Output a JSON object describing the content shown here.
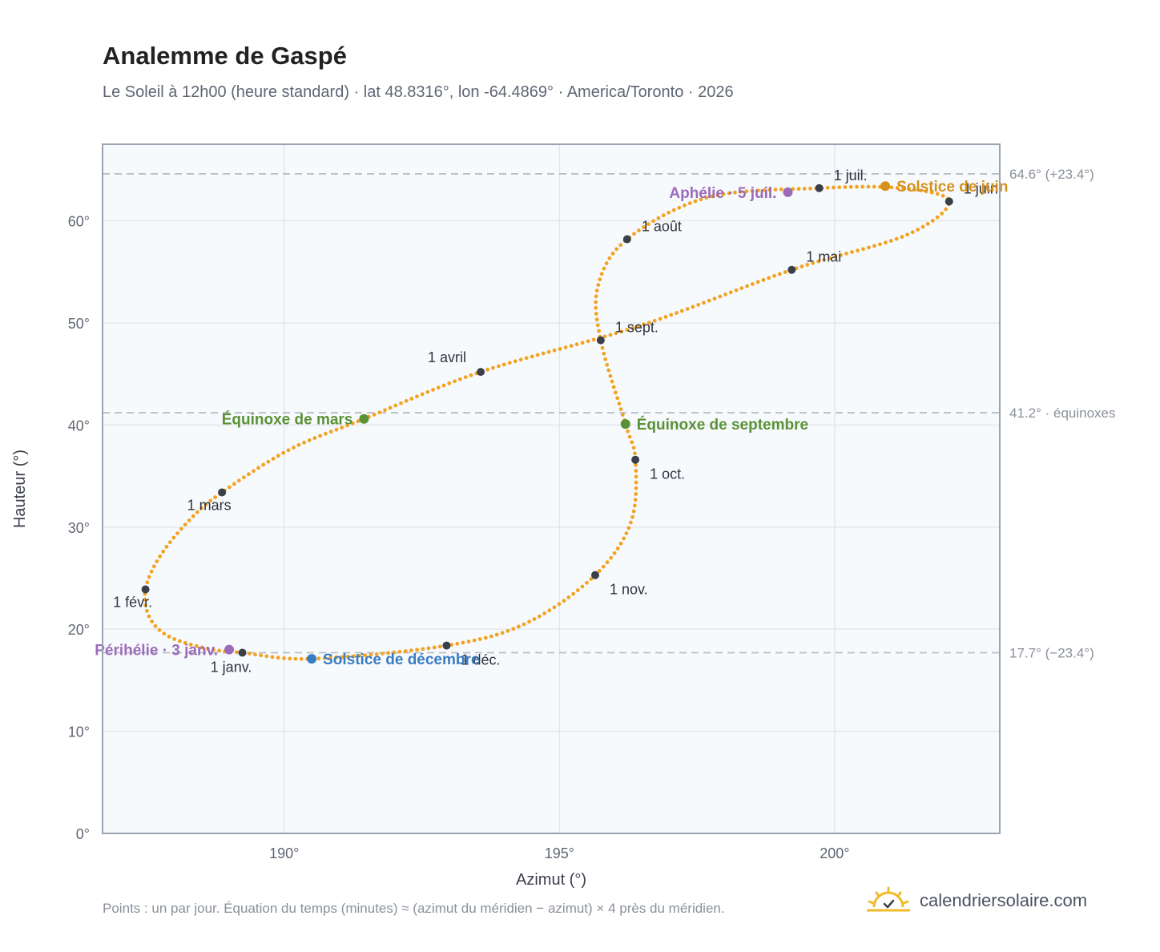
{
  "title": "Analemme de Gaspé",
  "subtitle": "Le Soleil à 12h00 (heure standard) · lat 48.8316°, lon -64.4869° · America/Toronto · 2026",
  "footnote": "Points : un par jour. Équation du temps (minutes) ≈ (azimut du méridien − azimut) × 4 près du méridien.",
  "brand": {
    "text": "calendriersolaire.com",
    "icon": "sun-check-logo-icon"
  },
  "colors": {
    "curve": "#f2a324",
    "month_dot": "#3a3f4a",
    "solstice_june": "#d4911c",
    "solstice_december": "#3a7cc2",
    "equinox": "#5a9135",
    "apsis": "#9b6bb7",
    "grid": "#e3e7ec",
    "plot_bg": "#f7fafd",
    "frame": "#9aa3b1",
    "refline": "#b9bec7"
  },
  "chart_data": {
    "type": "scatter",
    "title": "Analemme de Gaspé",
    "xlabel": "Azimut (°)",
    "ylabel": "Hauteur (°)",
    "xlim": [
      186.7,
      203.0
    ],
    "ylim": [
      0,
      67.5
    ],
    "xticks": [
      190,
      195,
      200
    ],
    "xtick_labels": [
      "190°",
      "195°",
      "200°"
    ],
    "yticks": [
      0,
      10,
      20,
      30,
      40,
      50,
      60
    ],
    "ytick_labels": [
      "0°",
      "10°",
      "20°",
      "30°",
      "40°",
      "50°",
      "60°"
    ],
    "grid": true,
    "series": [
      {
        "kind": "daily_curve",
        "points_per_day": 1,
        "control_points": [
          [
            189.24,
            17.7
          ],
          [
            188.6,
            18.1
          ],
          [
            187.9,
            19.3
          ],
          [
            187.55,
            21.2
          ],
          [
            187.48,
            23.9
          ],
          [
            187.75,
            27.2
          ],
          [
            188.3,
            30.8
          ],
          [
            188.87,
            33.4
          ],
          [
            190.1,
            37.6
          ],
          [
            191.45,
            40.6
          ],
          [
            193.57,
            45.2
          ],
          [
            196.45,
            49.7
          ],
          [
            199.22,
            55.2
          ],
          [
            201.3,
            58.6
          ],
          [
            202.08,
            61.9
          ],
          [
            201.2,
            63.2
          ],
          [
            199.72,
            63.2
          ],
          [
            197.7,
            62.3
          ],
          [
            196.23,
            58.2
          ],
          [
            195.7,
            53.6
          ],
          [
            195.75,
            48.3
          ],
          [
            196.2,
            40.1
          ],
          [
            196.38,
            36.6
          ],
          [
            196.3,
            30.5
          ],
          [
            195.65,
            25.3
          ],
          [
            194.4,
            20.6
          ],
          [
            192.95,
            18.4
          ],
          [
            190.5,
            17.1
          ],
          [
            189.24,
            17.7
          ]
        ]
      }
    ],
    "month_markers": [
      {
        "label": "1 janv.",
        "az": 189.24,
        "alt": 17.7,
        "pos": "below"
      },
      {
        "label": "1 févr.",
        "az": 187.48,
        "alt": 23.9,
        "pos": "below-left"
      },
      {
        "label": "1 mars",
        "az": 188.87,
        "alt": 33.4,
        "pos": "below-left"
      },
      {
        "label": "1 avril",
        "az": 193.57,
        "alt": 45.2,
        "pos": "above-left"
      },
      {
        "label": "1 mai",
        "az": 199.22,
        "alt": 55.2,
        "pos": "above-right"
      },
      {
        "label": "1 juin",
        "az": 202.08,
        "alt": 61.9,
        "pos": "above-right"
      },
      {
        "label": "1 juil.",
        "az": 199.72,
        "alt": 63.2,
        "pos": "above-right"
      },
      {
        "label": "1 août",
        "az": 196.23,
        "alt": 58.2,
        "pos": "above-right"
      },
      {
        "label": "1 sept.",
        "az": 195.75,
        "alt": 48.3,
        "pos": "above-right"
      },
      {
        "label": "1 oct.",
        "az": 196.38,
        "alt": 36.6,
        "pos": "below-right"
      },
      {
        "label": "1 nov.",
        "az": 195.65,
        "alt": 25.3,
        "pos": "below-right"
      },
      {
        "label": "1 déc.",
        "az": 192.95,
        "alt": 18.4,
        "pos": "below-right"
      }
    ],
    "events": [
      {
        "label": "Solstice de juin",
        "az": 200.92,
        "alt": 63.4,
        "color": "#d4911c",
        "side": "right"
      },
      {
        "label": "Solstice de décembre",
        "az": 190.5,
        "alt": 17.1,
        "color": "#3a7cc2",
        "side": "right"
      },
      {
        "label": "Équinoxe de mars",
        "az": 191.45,
        "alt": 40.6,
        "color": "#5a9135",
        "side": "left"
      },
      {
        "label": "Équinoxe de septembre",
        "az": 196.2,
        "alt": 40.1,
        "color": "#5a9135",
        "side": "right"
      },
      {
        "label": "Périhélie · 3 janv.",
        "az": 189.0,
        "alt": 18.0,
        "color": "#9b6bb7",
        "side": "left"
      },
      {
        "label": "Aphélie · 5 juil.",
        "az": 199.15,
        "alt": 62.8,
        "color": "#9b6bb7",
        "side": "left"
      }
    ],
    "reference_lines": [
      {
        "alt": 64.6,
        "label": "64.6° (+23.4°)"
      },
      {
        "alt": 41.2,
        "label": "41.2° · équinoxes"
      },
      {
        "alt": 17.7,
        "label": "17.7° (−23.4°)"
      }
    ]
  }
}
